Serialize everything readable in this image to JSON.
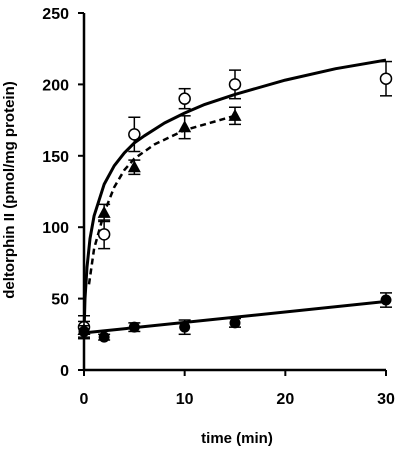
{
  "chart_data": {
    "type": "scatter",
    "title": "",
    "xlabel": "time (min)",
    "ylabel": "deltorphin II (pmol/mg protein)",
    "xlim": [
      0,
      30
    ],
    "ylim": [
      0,
      250
    ],
    "xticks": [
      "0",
      "10",
      "20",
      "30"
    ],
    "yticks": [
      "0",
      "50",
      "100",
      "150",
      "200",
      "250"
    ],
    "grid": false,
    "legend": "none",
    "series": [
      {
        "marker": "open-circle",
        "x": [
          0,
          2,
          5,
          10,
          15,
          30
        ],
        "y": [
          30,
          95,
          165,
          190,
          200,
          204
        ],
        "err": [
          8,
          10,
          12,
          7,
          10,
          12
        ],
        "fit": "solid",
        "fit_x": [
          0,
          0.1,
          0.3,
          0.6,
          1,
          2,
          3,
          4,
          5,
          6,
          8,
          10,
          12,
          15,
          20,
          25,
          30
        ],
        "fit_y": [
          25,
          50,
          72,
          92,
          108,
          130,
          143,
          152,
          159,
          164,
          173,
          180,
          186,
          193,
          203,
          211,
          217
        ]
      },
      {
        "marker": "filled-triangle",
        "x": [
          0,
          2,
          5,
          10,
          15
        ],
        "y": [
          28,
          110,
          142,
          170,
          178
        ],
        "err": [
          6,
          6,
          5,
          8,
          6
        ],
        "fit": "dashed",
        "fit_x": [
          0.5,
          1,
          2,
          3,
          4,
          5,
          7,
          10,
          13,
          15
        ],
        "fit_y": [
          60,
          85,
          110,
          128,
          140,
          148,
          158,
          168,
          174,
          178
        ]
      },
      {
        "marker": "filled-circle",
        "x": [
          0,
          2,
          5,
          10,
          15,
          30
        ],
        "y": [
          27,
          23,
          30,
          30,
          33,
          49
        ],
        "err": [
          4,
          2,
          3,
          5,
          3,
          5
        ],
        "fit": "solid",
        "fit_x": [
          0,
          30
        ],
        "fit_y": [
          26,
          48
        ]
      }
    ]
  },
  "colors": {
    "ink": "#000000",
    "background": "#ffffff"
  }
}
